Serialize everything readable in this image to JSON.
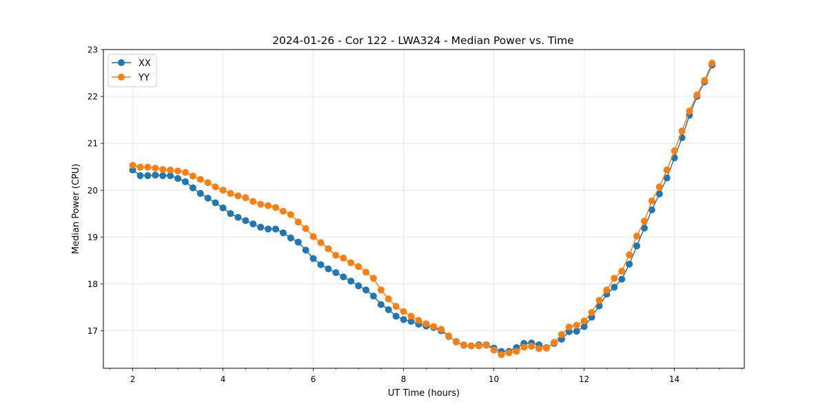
{
  "chart_data": {
    "type": "line",
    "title": "2024-01-26 - Cor 122 - LWA324 - Median Power vs. Time",
    "xlabel": "UT Time (hours)",
    "ylabel": "Median Power (CPU)",
    "xlim": [
      1.35,
      15.55
    ],
    "ylim": [
      16.2,
      23.0
    ],
    "xticks": [
      2,
      4,
      6,
      8,
      10,
      12,
      14
    ],
    "xtick_labels": [
      "2",
      "4",
      "6",
      "8",
      "10",
      "12",
      "14"
    ],
    "xminor_step": 0.5,
    "yticks": [
      17,
      18,
      19,
      20,
      21,
      22,
      23
    ],
    "ytick_labels": [
      "17",
      "18",
      "19",
      "20",
      "21",
      "22",
      "23"
    ],
    "grid": true,
    "legend_position": "top-left",
    "x_start": 2.0,
    "x_step": 0.1667,
    "series": [
      {
        "name": "XX",
        "color": "#1f77b4",
        "values": [
          20.43,
          20.31,
          20.31,
          20.32,
          20.31,
          20.31,
          20.25,
          20.18,
          20.05,
          19.93,
          19.83,
          19.73,
          19.62,
          19.5,
          19.42,
          19.35,
          19.28,
          19.21,
          19.17,
          19.17,
          19.09,
          18.98,
          18.89,
          18.72,
          18.54,
          18.41,
          18.32,
          18.24,
          18.15,
          18.06,
          17.96,
          17.87,
          17.74,
          17.56,
          17.45,
          17.31,
          17.24,
          17.2,
          17.14,
          17.1,
          17.07,
          17.0,
          16.88,
          16.77,
          16.69,
          16.68,
          16.7,
          16.7,
          16.63,
          16.56,
          16.56,
          16.64,
          16.73,
          16.74,
          16.7,
          16.64,
          16.73,
          16.82,
          16.98,
          16.99,
          17.09,
          17.29,
          17.53,
          17.78,
          17.93,
          18.1,
          18.42,
          18.81,
          19.19,
          19.58,
          19.92,
          20.26,
          20.69,
          21.12,
          21.6,
          22.0,
          22.31,
          22.67
        ]
      },
      {
        "name": "YY",
        "color": "#ff7f0e",
        "values": [
          20.53,
          20.49,
          20.49,
          20.47,
          20.44,
          20.43,
          20.41,
          20.38,
          20.3,
          20.23,
          20.16,
          20.07,
          20.0,
          19.93,
          19.88,
          19.84,
          19.76,
          19.7,
          19.67,
          19.63,
          19.55,
          19.48,
          19.32,
          19.18,
          19.01,
          18.88,
          18.75,
          18.61,
          18.55,
          18.45,
          18.37,
          18.25,
          18.12,
          17.87,
          17.68,
          17.52,
          17.41,
          17.31,
          17.22,
          17.15,
          17.09,
          17.03,
          16.89,
          16.76,
          16.7,
          16.68,
          16.68,
          16.69,
          16.59,
          16.49,
          16.53,
          16.56,
          16.65,
          16.67,
          16.62,
          16.63,
          16.75,
          16.92,
          17.08,
          17.12,
          17.21,
          17.39,
          17.65,
          17.87,
          18.12,
          18.27,
          18.62,
          19.02,
          19.34,
          19.77,
          20.07,
          20.43,
          20.84,
          21.26,
          21.69,
          22.03,
          22.34,
          22.71
        ]
      }
    ]
  }
}
